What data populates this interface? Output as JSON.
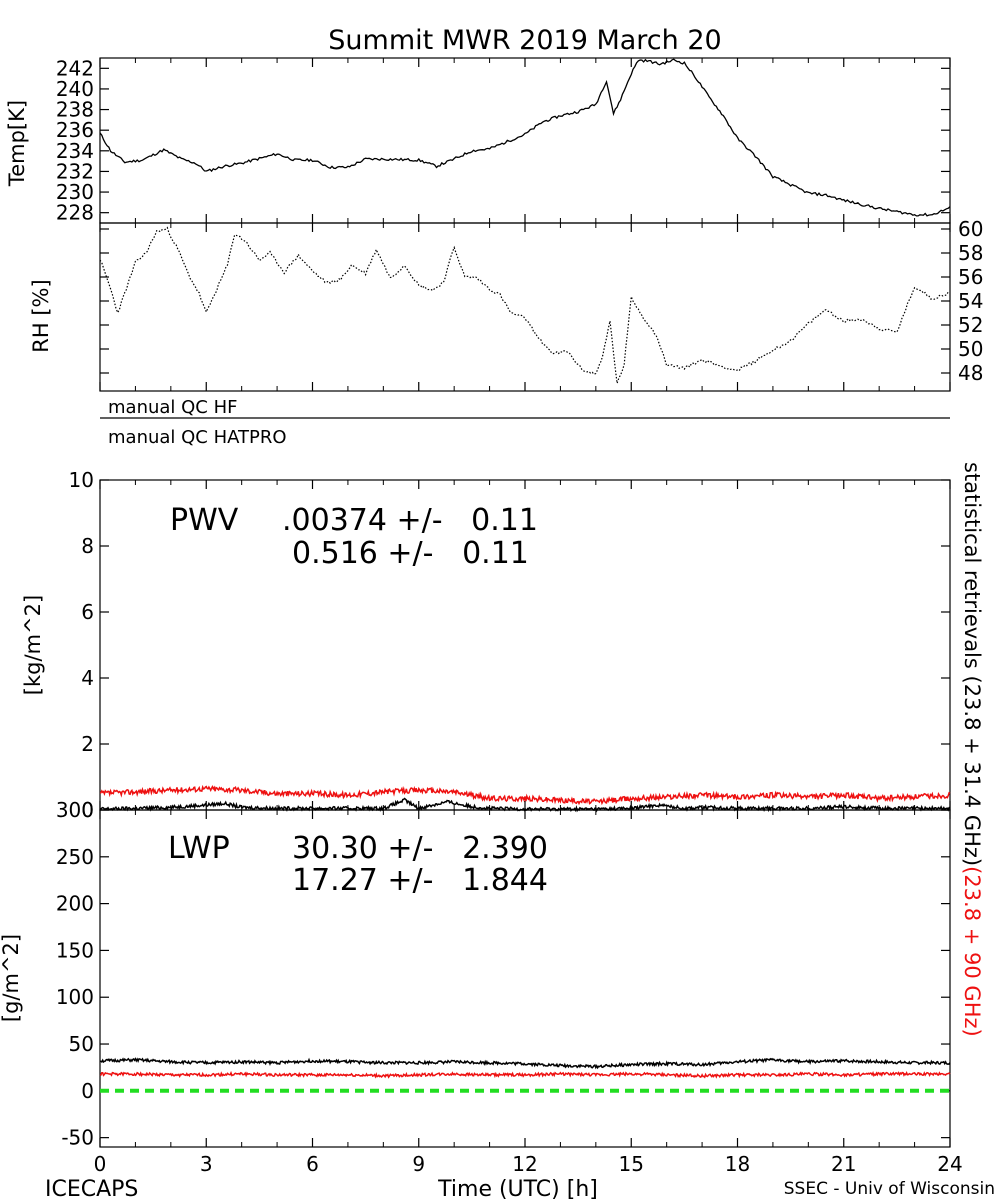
{
  "title": "Summit MWR 2019 March 20",
  "footer": {
    "left": "ICECAPS",
    "center": "Time (UTC) [h]",
    "right": "SSEC - Univ of Wisconsin"
  },
  "qc": {
    "hf": "manual QC HF",
    "hatpro": "manual QC HATPRO"
  },
  "side_label": {
    "black": "statistical retrievals (23.8 + 31.4 GHz)",
    "red": "(23.8 + 90 GHz)"
  },
  "colors": {
    "black": "#000000",
    "red": "#ee1111",
    "green": "#22dd22"
  },
  "chart_data": [
    {
      "type": "line",
      "name": "temperature",
      "ylabel": "Temp[K]",
      "xlim": [
        0,
        24
      ],
      "ylim": [
        227,
        243
      ],
      "yticks": [
        228,
        230,
        232,
        234,
        236,
        238,
        240,
        242
      ],
      "x": [
        0,
        0.3,
        0.7,
        1.2,
        1.8,
        2.3,
        2.7,
        3.0,
        3.5,
        4.0,
        5.0,
        5.5,
        6.0,
        6.5,
        7.0,
        7.5,
        8.0,
        9.0,
        9.5,
        10.0,
        10.5,
        11.0,
        11.5,
        12.0,
        12.5,
        13.0,
        13.5,
        14.0,
        14.3,
        14.5,
        14.7,
        15.0,
        15.2,
        15.5,
        15.8,
        16.2,
        16.5,
        16.8,
        17.2,
        17.6,
        18.0,
        18.5,
        19.0,
        19.5,
        20.0,
        20.5,
        21.0,
        21.5,
        22.0,
        22.5,
        23.0,
        23.5,
        24.0
      ],
      "y": [
        235.7,
        234.0,
        232.9,
        233.1,
        234.1,
        233.2,
        232.8,
        232.0,
        232.5,
        232.8,
        233.7,
        233.1,
        233.1,
        232.4,
        232.4,
        233.2,
        233.2,
        233.1,
        232.5,
        233.2,
        234.0,
        234.2,
        234.9,
        235.6,
        236.8,
        237.4,
        237.8,
        238.5,
        240.8,
        237.6,
        239.0,
        241.5,
        242.8,
        242.7,
        242.4,
        242.8,
        242.5,
        241.2,
        239.2,
        237.4,
        235.2,
        233.5,
        231.5,
        230.7,
        229.9,
        229.7,
        229.2,
        228.8,
        228.4,
        228.1,
        227.8,
        227.8,
        228.5
      ]
    },
    {
      "type": "line",
      "name": "relative humidity",
      "ylabel": "RH [%]",
      "xlim": [
        0,
        24
      ],
      "ylim": [
        46.5,
        60.5
      ],
      "yticks": [
        48,
        50,
        52,
        54,
        56,
        58,
        60
      ],
      "x": [
        0,
        0.3,
        0.5,
        0.8,
        1.0,
        1.3,
        1.6,
        1.9,
        2.2,
        2.5,
        2.8,
        3.0,
        3.3,
        3.6,
        3.8,
        4.1,
        4.5,
        4.8,
        5.2,
        5.6,
        6.0,
        6.4,
        6.8,
        7.1,
        7.5,
        7.8,
        8.2,
        8.6,
        9.0,
        9.4,
        9.7,
        10.0,
        10.3,
        10.6,
        11.0,
        11.3,
        11.6,
        12.0,
        12.4,
        12.8,
        13.2,
        13.6,
        14.0,
        14.2,
        14.4,
        14.6,
        14.8,
        15.0,
        15.3,
        15.7,
        16.0,
        16.5,
        17.0,
        17.5,
        18.0,
        18.5,
        19.0,
        19.5,
        20.0,
        20.5,
        21.0,
        21.5,
        22.0,
        22.5,
        23.0,
        23.5,
        24.0
      ],
      "y": [
        57.5,
        55.0,
        53.0,
        55.5,
        57.2,
        58.0,
        59.8,
        60.0,
        58.3,
        56.2,
        54.6,
        53.0,
        55.0,
        57.0,
        59.6,
        59.0,
        57.4,
        58.0,
        56.4,
        57.8,
        56.5,
        55.5,
        55.8,
        57.0,
        56.3,
        58.3,
        55.9,
        57.0,
        55.3,
        54.9,
        55.6,
        58.5,
        56.0,
        56.0,
        55.0,
        54.5,
        53.0,
        52.6,
        50.8,
        49.6,
        49.8,
        48.3,
        47.9,
        49.5,
        52.3,
        47.1,
        48.7,
        54.3,
        52.8,
        51.2,
        48.7,
        48.4,
        49.1,
        48.6,
        48.2,
        49.0,
        49.9,
        50.7,
        52.1,
        53.3,
        52.3,
        52.5,
        51.7,
        51.4,
        55.2,
        54.2,
        54.7
      ]
    },
    {
      "type": "line",
      "name": "PWV",
      "ylabel": "[kg/m^2]",
      "panel_label": "PWV",
      "stats": [
        {
          "text": ".00374 +/-   0.11",
          "color": "black"
        },
        {
          "text": "0.516 +/-   0.11",
          "color": "red"
        }
      ],
      "xlim": [
        0,
        24
      ],
      "ylim": [
        0,
        10
      ],
      "yticks": [
        0,
        2,
        4,
        6,
        8,
        10
      ],
      "series": [
        {
          "color": "red",
          "x": [
            0,
            1,
            2,
            3,
            4,
            5,
            6,
            7,
            8,
            9,
            10,
            11,
            12,
            13,
            14,
            15,
            16,
            17,
            18,
            19,
            20,
            21,
            22,
            23,
            24
          ],
          "y": [
            0.5,
            0.55,
            0.6,
            0.65,
            0.6,
            0.5,
            0.5,
            0.45,
            0.55,
            0.6,
            0.55,
            0.35,
            0.35,
            0.3,
            0.25,
            0.35,
            0.4,
            0.45,
            0.4,
            0.45,
            0.4,
            0.45,
            0.35,
            0.4,
            0.45
          ]
        },
        {
          "color": "black",
          "x": [
            0,
            1,
            2,
            3,
            3.5,
            4,
            5,
            6,
            7,
            8,
            8.6,
            9,
            9.8,
            10.5,
            11,
            12,
            13,
            14,
            15,
            15.8,
            16.5,
            17,
            18,
            19,
            20,
            21,
            22,
            23,
            24
          ],
          "y": [
            0.03,
            0.05,
            0.08,
            0.15,
            0.2,
            0.08,
            0.05,
            0.05,
            0.05,
            0.05,
            0.3,
            0.05,
            0.25,
            0.1,
            0.05,
            0.03,
            0.03,
            0.03,
            0.05,
            0.15,
            0.05,
            0.08,
            0.05,
            0.05,
            0.05,
            0.1,
            0.05,
            0.05,
            0.05
          ]
        }
      ]
    },
    {
      "type": "line",
      "name": "LWP",
      "ylabel": "[g/m^2]",
      "panel_label": "LWP",
      "stats": [
        {
          "text": "30.30 +/-   2.390",
          "color": "black"
        },
        {
          "text": "17.27 +/-   1.844",
          "color": "red"
        }
      ],
      "xlim": [
        0,
        24
      ],
      "xticks": [
        0,
        3,
        6,
        9,
        12,
        15,
        18,
        21,
        24
      ],
      "ylim": [
        -60,
        300
      ],
      "yticks": [
        -50,
        0,
        50,
        100,
        150,
        200,
        250,
        300
      ],
      "series": [
        {
          "color": "black",
          "x": [
            0,
            1,
            2,
            3,
            4,
            5,
            6,
            7,
            8,
            9,
            10,
            11,
            12,
            13,
            14,
            15,
            16,
            17,
            18,
            19,
            20,
            21,
            22,
            23,
            24
          ],
          "y": [
            32,
            33,
            31,
            30,
            31,
            30,
            32,
            31,
            30,
            30,
            31,
            30,
            29,
            27,
            26,
            28,
            29,
            28,
            31,
            33,
            31,
            32,
            31,
            30,
            30
          ]
        },
        {
          "color": "red",
          "x": [
            0,
            1,
            2,
            3,
            4,
            5,
            6,
            7,
            8,
            9,
            10,
            11,
            12,
            13,
            14,
            15,
            16,
            17,
            18,
            19,
            20,
            21,
            22,
            23,
            24
          ],
          "y": [
            18,
            18,
            17,
            17,
            18,
            17,
            17,
            17,
            16,
            17,
            18,
            17,
            17,
            18,
            17,
            18,
            17,
            16,
            17,
            17,
            18,
            17,
            18,
            18,
            18
          ]
        },
        {
          "color": "green",
          "style": "dashed",
          "x": [
            0,
            24
          ],
          "y": [
            0,
            0
          ]
        }
      ]
    }
  ]
}
